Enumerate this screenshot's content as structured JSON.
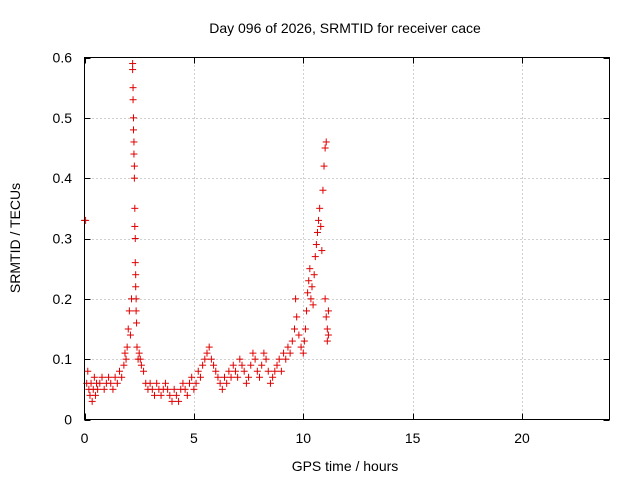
{
  "chart_data": {
    "type": "scatter",
    "title": "Day 096 of 2026, SRMTID for receiver cace",
    "xlabel": "GPS time / hours",
    "ylabel": "SRMTID / TECUs",
    "xlim": [
      0,
      24
    ],
    "ylim": [
      0,
      0.6
    ],
    "x_ticks": [
      0,
      5,
      10,
      15,
      20
    ],
    "x_tick_labels": [
      "0",
      "5",
      "10",
      "15",
      "20"
    ],
    "y_ticks": [
      0,
      0.1,
      0.2,
      0.3,
      0.4,
      0.5,
      0.6
    ],
    "y_tick_labels": [
      "0",
      "0.1",
      "0.2",
      "0.3",
      "0.4",
      "0.5",
      "0.6"
    ],
    "grid": true,
    "marker": "plus",
    "color": "#e00000",
    "series": [
      {
        "name": "SRMTID",
        "points": [
          [
            0.0,
            0.33
          ],
          [
            0.05,
            0.33
          ],
          [
            0.1,
            0.06
          ],
          [
            0.15,
            0.08
          ],
          [
            0.2,
            0.05
          ],
          [
            0.25,
            0.04
          ],
          [
            0.3,
            0.06
          ],
          [
            0.35,
            0.03
          ],
          [
            0.4,
            0.05
          ],
          [
            0.45,
            0.07
          ],
          [
            0.5,
            0.04
          ],
          [
            0.55,
            0.06
          ],
          [
            0.6,
            0.05
          ],
          [
            0.7,
            0.06
          ],
          [
            0.8,
            0.07
          ],
          [
            0.9,
            0.05
          ],
          [
            1.0,
            0.06
          ],
          [
            1.1,
            0.07
          ],
          [
            1.2,
            0.06
          ],
          [
            1.3,
            0.05
          ],
          [
            1.4,
            0.07
          ],
          [
            1.5,
            0.06
          ],
          [
            1.6,
            0.08
          ],
          [
            1.7,
            0.07
          ],
          [
            1.8,
            0.09
          ],
          [
            1.85,
            0.11
          ],
          [
            1.9,
            0.1
          ],
          [
            1.95,
            0.12
          ],
          [
            2.0,
            0.15
          ],
          [
            2.05,
            0.18
          ],
          [
            2.1,
            0.14
          ],
          [
            2.15,
            0.2
          ],
          [
            2.2,
            0.59
          ],
          [
            2.2,
            0.58
          ],
          [
            2.22,
            0.55
          ],
          [
            2.22,
            0.53
          ],
          [
            2.24,
            0.5
          ],
          [
            2.24,
            0.48
          ],
          [
            2.26,
            0.46
          ],
          [
            2.26,
            0.44
          ],
          [
            2.28,
            0.42
          ],
          [
            2.28,
            0.4
          ],
          [
            2.3,
            0.35
          ],
          [
            2.3,
            0.32
          ],
          [
            2.32,
            0.3
          ],
          [
            2.32,
            0.26
          ],
          [
            2.34,
            0.24
          ],
          [
            2.34,
            0.22
          ],
          [
            2.36,
            0.2
          ],
          [
            2.36,
            0.18
          ],
          [
            2.38,
            0.16
          ],
          [
            2.4,
            0.12
          ],
          [
            2.45,
            0.1
          ],
          [
            2.5,
            0.11
          ],
          [
            2.55,
            0.1
          ],
          [
            2.6,
            0.09
          ],
          [
            2.7,
            0.08
          ],
          [
            2.8,
            0.06
          ],
          [
            2.9,
            0.05
          ],
          [
            3.0,
            0.06
          ],
          [
            3.1,
            0.05
          ],
          [
            3.2,
            0.04
          ],
          [
            3.3,
            0.06
          ],
          [
            3.4,
            0.05
          ],
          [
            3.5,
            0.04
          ],
          [
            3.6,
            0.05
          ],
          [
            3.7,
            0.06
          ],
          [
            3.8,
            0.05
          ],
          [
            3.9,
            0.04
          ],
          [
            4.0,
            0.03
          ],
          [
            4.1,
            0.05
          ],
          [
            4.2,
            0.04
          ],
          [
            4.3,
            0.03
          ],
          [
            4.4,
            0.05
          ],
          [
            4.5,
            0.06
          ],
          [
            4.6,
            0.05
          ],
          [
            4.7,
            0.04
          ],
          [
            4.8,
            0.06
          ],
          [
            4.9,
            0.07
          ],
          [
            5.0,
            0.05
          ],
          [
            5.1,
            0.06
          ],
          [
            5.2,
            0.08
          ],
          [
            5.3,
            0.07
          ],
          [
            5.4,
            0.09
          ],
          [
            5.5,
            0.1
          ],
          [
            5.6,
            0.11
          ],
          [
            5.7,
            0.12
          ],
          [
            5.8,
            0.1
          ],
          [
            5.9,
            0.09
          ],
          [
            6.0,
            0.08
          ],
          [
            6.1,
            0.07
          ],
          [
            6.2,
            0.06
          ],
          [
            6.3,
            0.05
          ],
          [
            6.4,
            0.07
          ],
          [
            6.5,
            0.06
          ],
          [
            6.6,
            0.08
          ],
          [
            6.7,
            0.07
          ],
          [
            6.8,
            0.09
          ],
          [
            6.9,
            0.08
          ],
          [
            7.0,
            0.07
          ],
          [
            7.1,
            0.1
          ],
          [
            7.2,
            0.09
          ],
          [
            7.3,
            0.08
          ],
          [
            7.4,
            0.06
          ],
          [
            7.5,
            0.07
          ],
          [
            7.6,
            0.09
          ],
          [
            7.7,
            0.11
          ],
          [
            7.8,
            0.1
          ],
          [
            7.9,
            0.08
          ],
          [
            8.0,
            0.07
          ],
          [
            8.1,
            0.09
          ],
          [
            8.2,
            0.11
          ],
          [
            8.3,
            0.1
          ],
          [
            8.4,
            0.08
          ],
          [
            8.5,
            0.06
          ],
          [
            8.6,
            0.07
          ],
          [
            8.7,
            0.08
          ],
          [
            8.8,
            0.09
          ],
          [
            8.9,
            0.1
          ],
          [
            9.0,
            0.08
          ],
          [
            9.1,
            0.11
          ],
          [
            9.2,
            0.1
          ],
          [
            9.3,
            0.12
          ],
          [
            9.4,
            0.11
          ],
          [
            9.5,
            0.13
          ],
          [
            9.6,
            0.15
          ],
          [
            9.65,
            0.2
          ],
          [
            9.7,
            0.17
          ],
          [
            9.8,
            0.14
          ],
          [
            9.9,
            0.12
          ],
          [
            10.0,
            0.11
          ],
          [
            10.05,
            0.13
          ],
          [
            10.1,
            0.15
          ],
          [
            10.15,
            0.18
          ],
          [
            10.2,
            0.21
          ],
          [
            10.25,
            0.23
          ],
          [
            10.3,
            0.25
          ],
          [
            10.35,
            0.2
          ],
          [
            10.4,
            0.22
          ],
          [
            10.45,
            0.19
          ],
          [
            10.5,
            0.24
          ],
          [
            10.55,
            0.27
          ],
          [
            10.6,
            0.29
          ],
          [
            10.65,
            0.31
          ],
          [
            10.7,
            0.33
          ],
          [
            10.75,
            0.35
          ],
          [
            10.8,
            0.32
          ],
          [
            10.85,
            0.28
          ],
          [
            10.9,
            0.38
          ],
          [
            10.95,
            0.42
          ],
          [
            11.0,
            0.45
          ],
          [
            11.05,
            0.46
          ],
          [
            11.0,
            0.2
          ],
          [
            11.05,
            0.17
          ],
          [
            11.1,
            0.15
          ],
          [
            11.15,
            0.14
          ],
          [
            11.1,
            0.13
          ],
          [
            11.15,
            0.18
          ]
        ]
      }
    ]
  }
}
